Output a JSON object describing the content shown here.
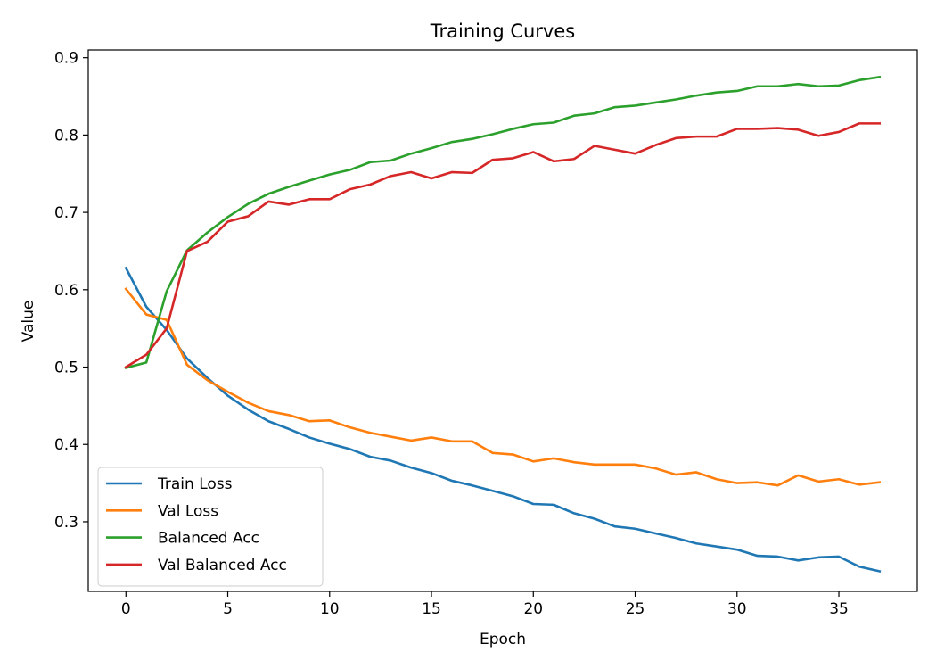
{
  "chart_data": {
    "type": "line",
    "title": "Training Curves",
    "xlabel": "Epoch",
    "ylabel": "Value",
    "xlim": [
      -1.85,
      38.85
    ],
    "ylim": [
      0.21,
      0.91
    ],
    "xticks": [
      0,
      5,
      10,
      15,
      20,
      25,
      30,
      35
    ],
    "yticks": [
      0.3,
      0.4,
      0.5,
      0.6,
      0.7,
      0.8,
      0.9
    ],
    "grid": false,
    "legend_position": "lower-left",
    "x": [
      0,
      1,
      2,
      3,
      4,
      5,
      6,
      7,
      8,
      9,
      10,
      11,
      12,
      13,
      14,
      15,
      16,
      17,
      18,
      19,
      20,
      21,
      22,
      23,
      24,
      25,
      26,
      27,
      28,
      29,
      30,
      31,
      32,
      33,
      34,
      35,
      36,
      37
    ],
    "series": [
      {
        "name": "Train Loss",
        "color": "#1f77b4",
        "values": [
          0.628,
          0.578,
          0.548,
          0.511,
          0.486,
          0.463,
          0.445,
          0.43,
          0.42,
          0.409,
          0.401,
          0.394,
          0.384,
          0.379,
          0.37,
          0.363,
          0.353,
          0.347,
          0.34,
          0.333,
          0.323,
          0.322,
          0.311,
          0.304,
          0.294,
          0.291,
          0.285,
          0.279,
          0.272,
          0.268,
          0.264,
          0.256,
          0.255,
          0.25,
          0.254,
          0.255,
          0.242,
          0.236
        ]
      },
      {
        "name": "Val Loss",
        "color": "#ff7f0e",
        "values": [
          0.601,
          0.568,
          0.561,
          0.503,
          0.483,
          0.468,
          0.454,
          0.443,
          0.438,
          0.43,
          0.431,
          0.422,
          0.415,
          0.41,
          0.405,
          0.409,
          0.404,
          0.404,
          0.389,
          0.387,
          0.378,
          0.382,
          0.377,
          0.374,
          0.374,
          0.374,
          0.369,
          0.361,
          0.364,
          0.355,
          0.35,
          0.351,
          0.347,
          0.36,
          0.352,
          0.355,
          0.348,
          0.351
        ]
      },
      {
        "name": "Balanced Acc",
        "color": "#2ca02c",
        "values": [
          0.499,
          0.506,
          0.598,
          0.651,
          0.674,
          0.694,
          0.711,
          0.724,
          0.733,
          0.741,
          0.749,
          0.755,
          0.765,
          0.767,
          0.776,
          0.783,
          0.791,
          0.795,
          0.801,
          0.808,
          0.814,
          0.816,
          0.825,
          0.828,
          0.836,
          0.838,
          0.842,
          0.846,
          0.851,
          0.855,
          0.857,
          0.863,
          0.863,
          0.866,
          0.863,
          0.864,
          0.871,
          0.875
        ]
      },
      {
        "name": "Val Balanced Acc",
        "color": "#d62728",
        "values": [
          0.5,
          0.516,
          0.55,
          0.65,
          0.662,
          0.688,
          0.695,
          0.714,
          0.71,
          0.717,
          0.717,
          0.73,
          0.736,
          0.747,
          0.752,
          0.744,
          0.752,
          0.751,
          0.768,
          0.77,
          0.778,
          0.766,
          0.769,
          0.786,
          0.781,
          0.776,
          0.787,
          0.796,
          0.798,
          0.798,
          0.808,
          0.808,
          0.809,
          0.807,
          0.799,
          0.804,
          0.815,
          0.815
        ]
      }
    ]
  }
}
